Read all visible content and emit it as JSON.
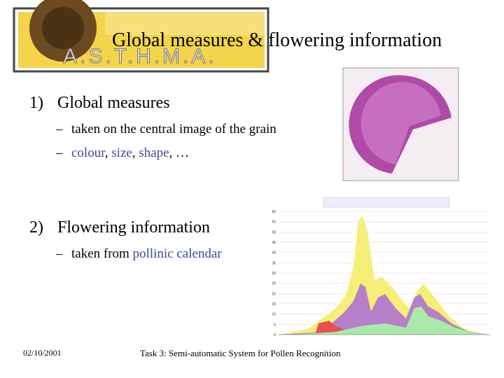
{
  "logo": "A.S.T.H.M.A.",
  "title": "Global measures & flowering information",
  "sections": [
    {
      "number": "1)",
      "heading": "Global measures",
      "subitems": [
        {
          "marker": "–",
          "segments": [
            {
              "text": "taken on the central image of the grain",
              "highlight": false
            }
          ]
        },
        {
          "marker": "–",
          "segments": [
            {
              "text": "colour",
              "highlight": true
            },
            {
              "text": ", ",
              "highlight": false
            },
            {
              "text": "size",
              "highlight": true
            },
            {
              "text": ", ",
              "highlight": false
            },
            {
              "text": "shape",
              "highlight": true
            },
            {
              "text": ", …",
              "highlight": false
            }
          ]
        }
      ]
    },
    {
      "number": "2)",
      "heading": "Flowering information",
      "subitems": [
        {
          "marker": "–",
          "segments": [
            {
              "text": "taken from ",
              "highlight": false
            },
            {
              "text": "pollinic calendar",
              "highlight": true
            }
          ]
        }
      ]
    }
  ],
  "pollen_chart": {
    "ylim": [
      0,
      60
    ],
    "yticks": [
      0,
      5,
      10,
      15,
      20,
      25,
      30,
      35,
      40,
      45,
      50,
      55,
      60
    ]
  },
  "footer": {
    "date": "02/10/2001",
    "text": "Task 3: Semi-automatic System for Pollen Recognition"
  }
}
